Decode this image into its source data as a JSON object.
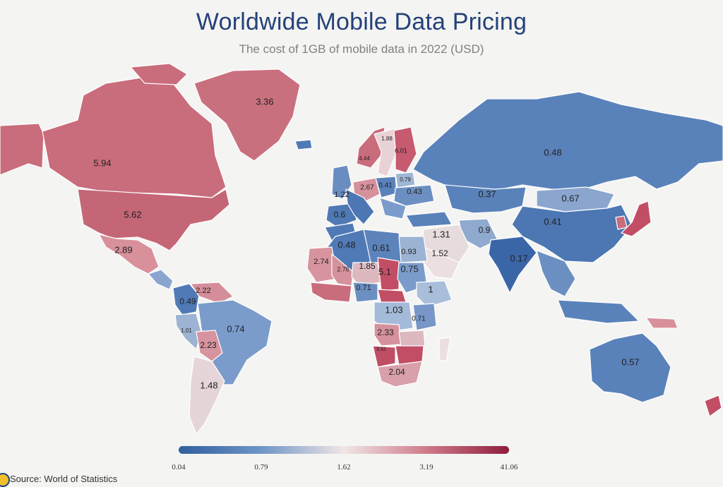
{
  "header": {
    "title": "Worldwide Mobile Data Pricing",
    "subtitle": "The cost of 1GB of mobile data in 2022 (USD)"
  },
  "colors": {
    "low": "#2f5f9e",
    "mid_low": "#6f95c6",
    "mid": "#f0e6e6",
    "mid_high": "#cf7a8a",
    "high": "#8e1d3c"
  },
  "legend": {
    "ticks": [
      "0.04",
      "0.79",
      "1.62",
      "3.19",
      "41.06"
    ]
  },
  "source": "Source: World of Statistics",
  "regions": [
    {
      "id": "greenland",
      "label": "3.36",
      "color": "#c9707f"
    },
    {
      "id": "canada",
      "label": "5.94",
      "color": "#c96c7c"
    },
    {
      "id": "usa",
      "label": "5.62",
      "color": "#c46676"
    },
    {
      "id": "mexico",
      "label": "2.89",
      "color": "#d8909b"
    },
    {
      "id": "colombia",
      "label": "0.49",
      "color": "#4f7ab5"
    },
    {
      "id": "venezuela",
      "label": "2.22",
      "color": "#d58e99"
    },
    {
      "id": "peru",
      "label": "1.01",
      "color": "#9db3d3"
    },
    {
      "id": "brazil",
      "label": "0.74",
      "color": "#7b9ccb"
    },
    {
      "id": "bolivia",
      "label": "2.23",
      "color": "#d7939e"
    },
    {
      "id": "argentina",
      "label": "1.48",
      "color": "#e6d5d8"
    },
    {
      "id": "russia",
      "label": "0.48",
      "color": "#5a82ba"
    },
    {
      "id": "kazakhstan",
      "label": "0.37",
      "color": "#5a82ba"
    },
    {
      "id": "mongolia",
      "label": "0.67",
      "color": "#8aa6cf"
    },
    {
      "id": "china",
      "label": "0.41",
      "color": "#4c77b3"
    },
    {
      "id": "india",
      "label": "0.17",
      "color": "#3a66a8"
    },
    {
      "id": "iran",
      "label": "0.9",
      "color": "#8fa9cf"
    },
    {
      "id": "saudi",
      "label": "1.31",
      "color": "#e7dcdd"
    },
    {
      "id": "arabia-south",
      "label": "1.52",
      "color": "#ecdfe1"
    },
    {
      "id": "norway",
      "label": "4.44",
      "color": "#c96c7c"
    },
    {
      "id": "sweden",
      "label": "1.88",
      "color": "#e9d2d6"
    },
    {
      "id": "finland",
      "label": "6.01",
      "color": "#c65a6f"
    },
    {
      "id": "germany",
      "label": "2.67",
      "color": "#d5919c"
    },
    {
      "id": "poland",
      "label": "0.41",
      "color": "#5a82ba"
    },
    {
      "id": "belarus",
      "label": "0.79",
      "color": "#9fb6d6"
    },
    {
      "id": "ukraine",
      "label": "0.43",
      "color": "#6c8fc2"
    },
    {
      "id": "uk",
      "label": "1.22",
      "color": "#6a8dc1"
    },
    {
      "id": "spain",
      "label": "0.6",
      "color": "#4e79b4"
    },
    {
      "id": "algeria",
      "label": "0.48",
      "color": "#4f7ab5"
    },
    {
      "id": "libya",
      "label": "0.61",
      "color": "#5c83bb"
    },
    {
      "id": "egypt",
      "label": "0.93",
      "color": "#9cb3d4"
    },
    {
      "id": "mauritania",
      "label": "2.74",
      "color": "#d7949e"
    },
    {
      "id": "mali",
      "label": "2.76",
      "color": "#d5919c"
    },
    {
      "id": "niger",
      "label": "1.85",
      "color": "#dcb9bf"
    },
    {
      "id": "chad",
      "label": "5.1",
      "color": "#c24e66"
    },
    {
      "id": "sudan",
      "label": "0.75",
      "color": "#7b9ccb"
    },
    {
      "id": "nigeria",
      "label": "0.71",
      "color": "#6c8fc2"
    },
    {
      "id": "ethiopia",
      "label": "1",
      "color": "#a9bedb"
    },
    {
      "id": "drc",
      "label": "1.03",
      "color": "#a4bad9"
    },
    {
      "id": "tanzania",
      "label": "0.71",
      "color": "#7896c7"
    },
    {
      "id": "angola",
      "label": "2.33",
      "color": "#d5919c"
    },
    {
      "id": "namibia",
      "label": "5.52",
      "color": "#bf4d63"
    },
    {
      "id": "south-africa",
      "label": "2.04",
      "color": "#d8a0aa"
    },
    {
      "id": "australia",
      "label": "0.57",
      "color": "#5a82ba"
    }
  ]
}
